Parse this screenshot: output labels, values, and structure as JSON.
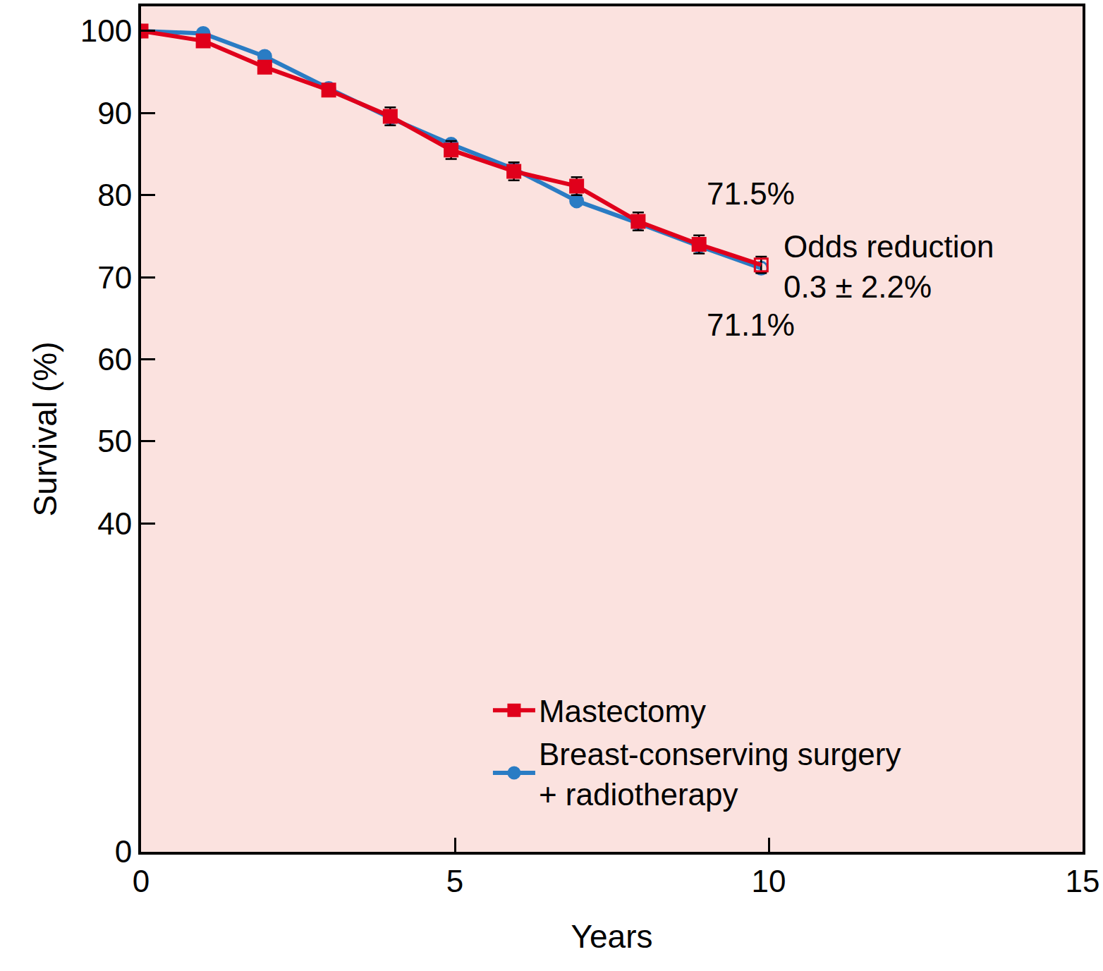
{
  "chart_data": {
    "type": "line",
    "x_label": "Years",
    "y_label": "Survival (%)",
    "x": [
      0,
      0.99,
      1.97,
      2.99,
      3.97,
      4.94,
      5.94,
      6.94,
      7.92,
      8.89,
      9.88
    ],
    "series": [
      {
        "name": "Breast-conserving surgery\n+ radiotherapy",
        "color": "#2a7cc4",
        "marker": "circle",
        "values": [
          100,
          99.7,
          96.9,
          93.0,
          89.4,
          86.2,
          83.2,
          79.3,
          76.6,
          73.8,
          71.1
        ],
        "error": [
          null,
          null,
          null,
          null,
          null,
          null,
          null,
          null,
          null,
          null,
          null
        ]
      },
      {
        "name": "Mastectomy",
        "color": "#e0001b",
        "marker": "square",
        "values": [
          100,
          98.8,
          95.6,
          92.8,
          89.6,
          85.5,
          82.9,
          81.1,
          76.8,
          74.0,
          71.5
        ],
        "error": [
          null,
          null,
          null,
          null,
          1.1,
          1.1,
          1.1,
          1.1,
          1.1,
          1.1,
          1.0
        ]
      }
    ],
    "annotations": [
      "71.5%",
      "Odds reduction\n0.3 ± 2.2%",
      "71.1%"
    ],
    "xlim": [
      0,
      15
    ],
    "xticks": [
      0,
      5,
      10,
      15
    ],
    "ylim": [
      0,
      103
    ],
    "yticks": [
      0,
      40,
      50,
      60,
      70,
      80,
      90,
      100
    ],
    "grid": false,
    "legend": "lower right"
  }
}
